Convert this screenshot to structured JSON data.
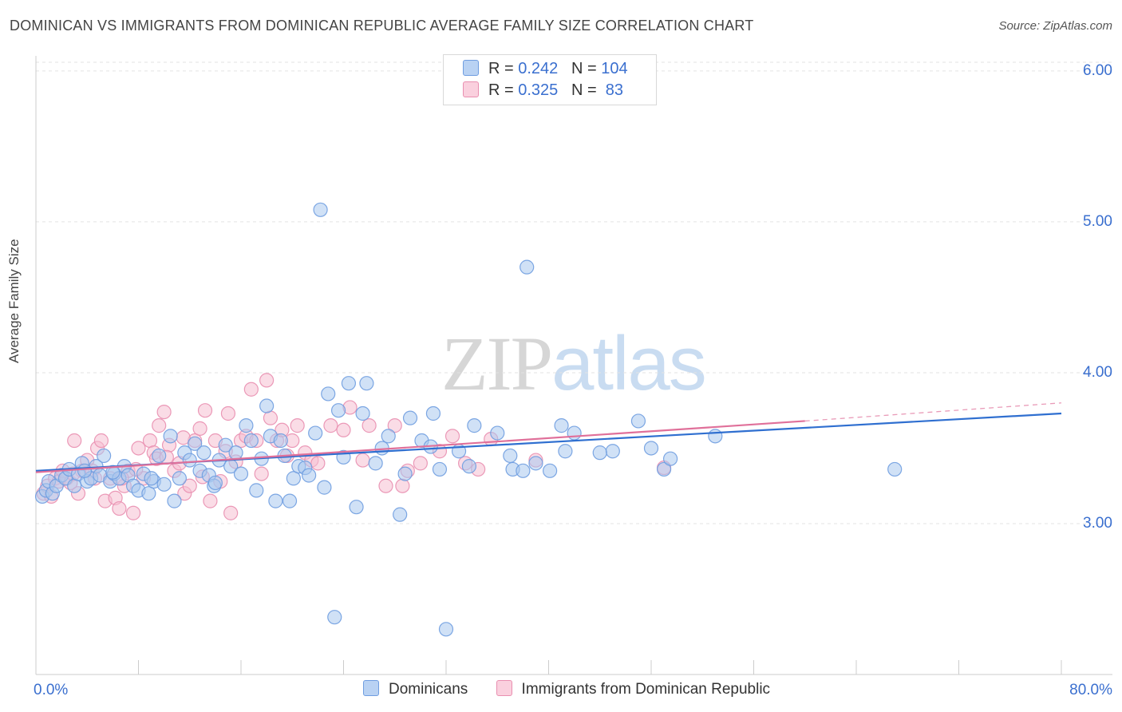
{
  "chart_data": {
    "type": "scatter",
    "title": "DOMINICAN VS IMMIGRANTS FROM DOMINICAN REPUBLIC AVERAGE FAMILY SIZE CORRELATION CHART",
    "source": "Source: ZipAtlas.com",
    "ylabel": "Average Family Size",
    "xlabel": "",
    "xlim": [
      0,
      80
    ],
    "ylim": [
      2.0,
      6.1
    ],
    "x_tick_labels": [
      "0.0%",
      "80.0%"
    ],
    "y_ticks": [
      3.0,
      4.0,
      5.0,
      6.0
    ],
    "y_tick_labels": [
      "3.00",
      "4.00",
      "5.00",
      "6.00"
    ],
    "watermark": {
      "part1": "ZIP",
      "part2": "atlas"
    },
    "colors": {
      "blue_fill": "#aac8ef",
      "blue_stroke": "#6f9de0",
      "blue_line": "#2f6fd0",
      "pink_fill": "#f6bfd2",
      "pink_stroke": "#e98fb0",
      "pink_line": "#e0709a",
      "tick_label": "#3a6fcf"
    },
    "legend": [
      {
        "name": "Dominicans",
        "r_label": "R = ",
        "r_value": "0.242",
        "n_label": "N = ",
        "n_value": "104"
      },
      {
        "name": "Immigrants from Dominican Republic",
        "r_label": "R = ",
        "r_value": "0.325",
        "n_label": "N = ",
        "n_value": " 83"
      }
    ],
    "series": [
      {
        "name": "Dominicans",
        "trend": {
          "x0": 0,
          "y0": 3.35,
          "x1": 80,
          "y1": 3.73
        },
        "points": [
          [
            0.5,
            3.18
          ],
          [
            0.8,
            3.22
          ],
          [
            1.0,
            3.28
          ],
          [
            1.3,
            3.2
          ],
          [
            1.6,
            3.25
          ],
          [
            2.0,
            3.32
          ],
          [
            2.3,
            3.3
          ],
          [
            2.6,
            3.36
          ],
          [
            3.0,
            3.25
          ],
          [
            3.3,
            3.33
          ],
          [
            3.6,
            3.4
          ],
          [
            4.0,
            3.28
          ],
          [
            4.3,
            3.3
          ],
          [
            4.7,
            3.38
          ],
          [
            5.0,
            3.32
          ],
          [
            5.3,
            3.45
          ],
          [
            5.8,
            3.28
          ],
          [
            6.1,
            3.33
          ],
          [
            6.5,
            3.3
          ],
          [
            6.9,
            3.38
          ],
          [
            7.2,
            3.32
          ],
          [
            7.6,
            3.25
          ],
          [
            8.0,
            3.22
          ],
          [
            8.4,
            3.33
          ],
          [
            8.8,
            3.2
          ],
          [
            9.2,
            3.28
          ],
          [
            9.6,
            3.45
          ],
          [
            10.0,
            3.26
          ],
          [
            10.5,
            3.58
          ],
          [
            10.8,
            3.15
          ],
          [
            11.2,
            3.3
          ],
          [
            11.6,
            3.47
          ],
          [
            12.0,
            3.42
          ],
          [
            12.4,
            3.53
          ],
          [
            12.8,
            3.35
          ],
          [
            13.1,
            3.47
          ],
          [
            13.5,
            3.32
          ],
          [
            13.9,
            3.25
          ],
          [
            14.3,
            3.42
          ],
          [
            14.8,
            3.52
          ],
          [
            15.2,
            3.38
          ],
          [
            15.6,
            3.47
          ],
          [
            16.0,
            3.33
          ],
          [
            16.4,
            3.65
          ],
          [
            16.8,
            3.55
          ],
          [
            17.2,
            3.22
          ],
          [
            17.6,
            3.43
          ],
          [
            18.0,
            3.78
          ],
          [
            18.3,
            3.58
          ],
          [
            18.7,
            3.15
          ],
          [
            19.1,
            3.55
          ],
          [
            19.4,
            3.45
          ],
          [
            19.8,
            3.15
          ],
          [
            20.1,
            3.3
          ],
          [
            20.5,
            3.38
          ],
          [
            21.0,
            3.37
          ],
          [
            21.3,
            3.32
          ],
          [
            21.8,
            3.6
          ],
          [
            22.2,
            5.08
          ],
          [
            22.5,
            3.24
          ],
          [
            22.8,
            3.86
          ],
          [
            23.3,
            2.38
          ],
          [
            23.6,
            3.75
          ],
          [
            24.4,
            3.93
          ],
          [
            25.0,
            3.11
          ],
          [
            25.5,
            3.73
          ],
          [
            25.8,
            3.93
          ],
          [
            26.5,
            3.4
          ],
          [
            27.5,
            3.58
          ],
          [
            28.4,
            3.06
          ],
          [
            28.8,
            3.33
          ],
          [
            29.2,
            3.7
          ],
          [
            30.1,
            3.55
          ],
          [
            30.8,
            3.51
          ],
          [
            31.0,
            3.73
          ],
          [
            31.5,
            3.36
          ],
          [
            32.0,
            2.3
          ],
          [
            33.0,
            3.48
          ],
          [
            33.8,
            3.38
          ],
          [
            34.2,
            3.65
          ],
          [
            36.0,
            3.6
          ],
          [
            37.0,
            3.45
          ],
          [
            37.2,
            3.36
          ],
          [
            38.0,
            3.35
          ],
          [
            38.3,
            4.7
          ],
          [
            39.0,
            3.4
          ],
          [
            40.1,
            3.35
          ],
          [
            41.0,
            3.65
          ],
          [
            41.3,
            3.48
          ],
          [
            42.0,
            3.6
          ],
          [
            45.0,
            3.48
          ],
          [
            47.0,
            3.68
          ],
          [
            48.0,
            3.5
          ],
          [
            49.0,
            3.36
          ],
          [
            49.5,
            3.43
          ],
          [
            53.0,
            3.58
          ],
          [
            67.0,
            3.36
          ],
          [
            3.8,
            3.35
          ],
          [
            6.0,
            3.34
          ],
          [
            9.0,
            3.3
          ],
          [
            14.0,
            3.27
          ],
          [
            24.0,
            3.44
          ],
          [
            27.0,
            3.5
          ],
          [
            44.0,
            3.47
          ]
        ]
      },
      {
        "name": "Immigrants from Dominican Republic",
        "trend": {
          "x0": 0,
          "y0": 3.34,
          "x1": 60,
          "y1": 3.68,
          "dash_x1": 80,
          "dash_y1": 3.8
        },
        "points": [
          [
            0.6,
            3.2
          ],
          [
            0.9,
            3.25
          ],
          [
            1.2,
            3.18
          ],
          [
            1.5,
            3.3
          ],
          [
            1.8,
            3.28
          ],
          [
            2.1,
            3.35
          ],
          [
            2.4,
            3.3
          ],
          [
            2.7,
            3.27
          ],
          [
            3.0,
            3.55
          ],
          [
            3.3,
            3.2
          ],
          [
            3.6,
            3.35
          ],
          [
            4.0,
            3.42
          ],
          [
            4.4,
            3.35
          ],
          [
            4.8,
            3.5
          ],
          [
            5.1,
            3.55
          ],
          [
            5.4,
            3.15
          ],
          [
            5.8,
            3.3
          ],
          [
            6.2,
            3.17
          ],
          [
            6.5,
            3.1
          ],
          [
            6.9,
            3.25
          ],
          [
            7.2,
            3.35
          ],
          [
            7.6,
            3.07
          ],
          [
            8.0,
            3.5
          ],
          [
            8.4,
            3.3
          ],
          [
            8.9,
            3.55
          ],
          [
            9.2,
            3.47
          ],
          [
            9.6,
            3.65
          ],
          [
            10.0,
            3.74
          ],
          [
            10.4,
            3.52
          ],
          [
            10.8,
            3.35
          ],
          [
            11.2,
            3.4
          ],
          [
            11.6,
            3.2
          ],
          [
            12.0,
            3.25
          ],
          [
            12.4,
            3.55
          ],
          [
            12.8,
            3.63
          ],
          [
            13.2,
            3.75
          ],
          [
            13.6,
            3.15
          ],
          [
            14.0,
            3.55
          ],
          [
            14.4,
            3.28
          ],
          [
            14.8,
            3.48
          ],
          [
            15.2,
            3.07
          ],
          [
            15.6,
            3.41
          ],
          [
            16.0,
            3.55
          ],
          [
            16.4,
            3.58
          ],
          [
            16.8,
            3.89
          ],
          [
            17.2,
            3.55
          ],
          [
            17.6,
            3.33
          ],
          [
            18.0,
            3.95
          ],
          [
            18.3,
            3.7
          ],
          [
            18.8,
            3.55
          ],
          [
            19.2,
            3.62
          ],
          [
            19.6,
            3.45
          ],
          [
            20.0,
            3.55
          ],
          [
            20.4,
            3.65
          ],
          [
            21.0,
            3.47
          ],
          [
            21.5,
            3.42
          ],
          [
            22.0,
            3.4
          ],
          [
            23.0,
            3.65
          ],
          [
            24.0,
            3.62
          ],
          [
            24.5,
            3.77
          ],
          [
            25.5,
            3.42
          ],
          [
            26.0,
            3.65
          ],
          [
            27.3,
            3.25
          ],
          [
            28.0,
            3.65
          ],
          [
            28.6,
            3.25
          ],
          [
            29.0,
            3.35
          ],
          [
            30.0,
            3.4
          ],
          [
            31.5,
            3.48
          ],
          [
            32.5,
            3.58
          ],
          [
            33.5,
            3.4
          ],
          [
            34.5,
            3.36
          ],
          [
            35.5,
            3.56
          ],
          [
            39.0,
            3.42
          ],
          [
            49.0,
            3.37
          ],
          [
            11.5,
            3.57
          ],
          [
            9.4,
            3.43
          ],
          [
            7.8,
            3.36
          ],
          [
            4.6,
            3.3
          ],
          [
            2.9,
            3.33
          ],
          [
            15.0,
            3.73
          ],
          [
            13.0,
            3.31
          ],
          [
            6.7,
            3.3
          ],
          [
            10.2,
            3.44
          ]
        ]
      }
    ]
  }
}
